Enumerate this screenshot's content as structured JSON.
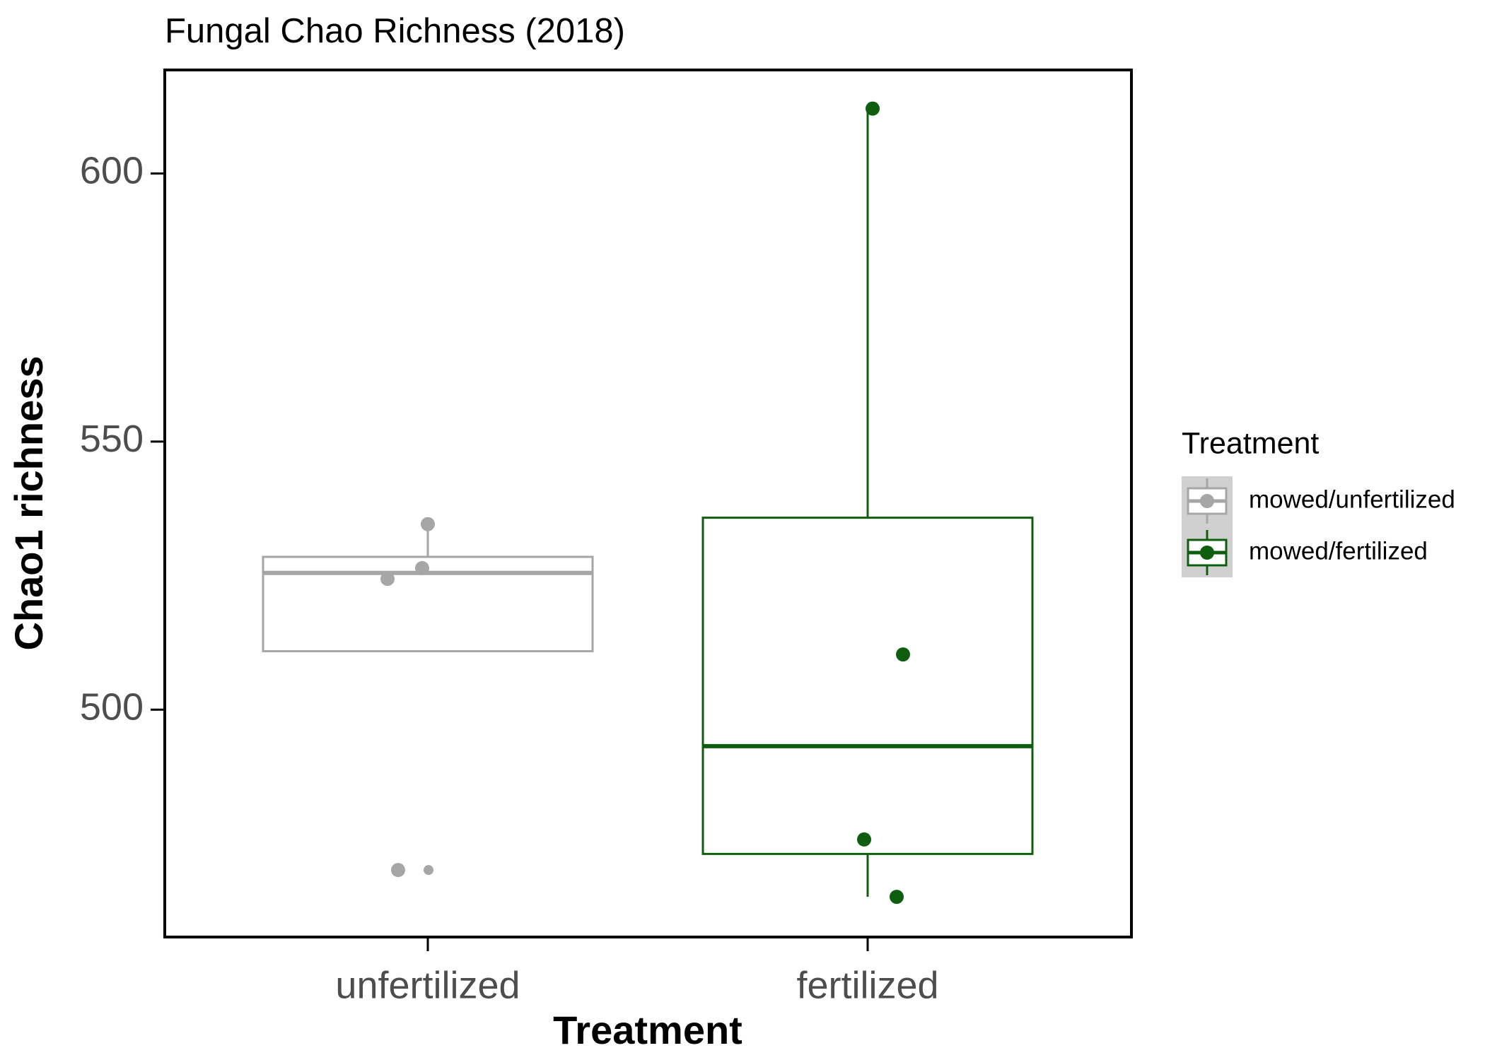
{
  "chart_data": {
    "type": "box",
    "title": "Fungal Chao Richness (2018)",
    "x_label": "Treatment",
    "y_label": "Chao1 richness",
    "categories": [
      "unfertilized",
      "fertilized"
    ],
    "legend_title": "Treatment",
    "legend_position": "right",
    "series": [
      {
        "name": "mowed/unfertilized",
        "color": "#a6a6a6",
        "q1": 510.9,
        "median": 525.5,
        "q3": 528.5,
        "whisker_low": 510.9,
        "whisker_high": 534.6,
        "points": [
          534.6,
          526.4,
          524.4,
          470.1,
          470.1
        ]
      },
      {
        "name": "mowed/fertilized",
        "color": "#0f5e0f",
        "q1": 473.1,
        "median": 493.2,
        "q3": 535.8,
        "whisker_low": 465.1,
        "whisker_high": 612.1,
        "points": [
          612.1,
          510.3,
          475.8,
          465.1
        ]
      }
    ],
    "ylim": [
      457.6,
      619.3
    ],
    "yticks": [
      500,
      550,
      600
    ]
  }
}
